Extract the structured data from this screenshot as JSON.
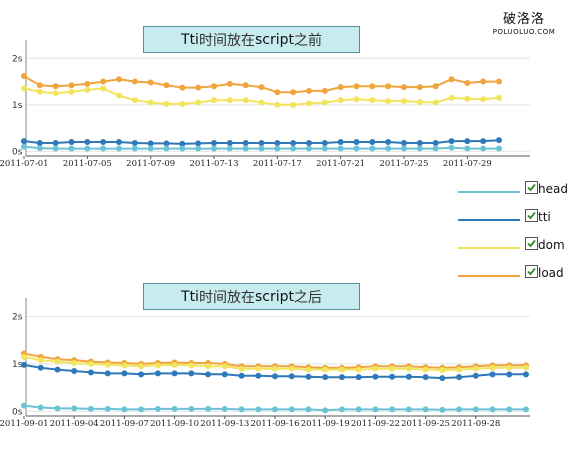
{
  "logo": {
    "text": "破洛洛",
    "subtext": "POLUOLUO.COM"
  },
  "legend": [
    {
      "name": "head",
      "color": "#6cc3d5",
      "checked": true
    },
    {
      "name": "tti",
      "color": "#2f78b9",
      "checked": true
    },
    {
      "name": "dom",
      "color": "#f2e45c",
      "checked": true
    },
    {
      "name": "load",
      "color": "#f0a53c",
      "checked": true
    }
  ],
  "chart_data": [
    {
      "type": "line",
      "title_latin": "Tti ",
      "title_cn": "时间放在 ",
      "title_code": "script",
      "title_tail": " 之前",
      "y_tick_labels": [
        "0s",
        "1s",
        "2s"
      ],
      "y_tick_values": [
        0,
        1,
        2
      ],
      "ylim": [
        -0.1,
        2.35
      ],
      "x_tick_labels": [
        "2011-07-01",
        "2011-07-05",
        "2011-07-09",
        "2011-07-13",
        "2011-07-17",
        "2011-07-21",
        "2011-07-25",
        "2011-07-29"
      ],
      "x_tick_index": [
        0,
        4,
        8,
        12,
        16,
        20,
        24,
        28
      ],
      "x_count": 31,
      "grid": true,
      "series": [
        {
          "name": "load",
          "color": "#f0a53c",
          "values": [
            1.62,
            1.42,
            1.4,
            1.42,
            1.45,
            1.5,
            1.55,
            1.5,
            1.48,
            1.42,
            1.37,
            1.37,
            1.4,
            1.45,
            1.42,
            1.38,
            1.27,
            1.27,
            1.3,
            1.3,
            1.38,
            1.4,
            1.4,
            1.4,
            1.38,
            1.38,
            1.4,
            1.55,
            1.47,
            1.5,
            1.5
          ]
        },
        {
          "name": "dom",
          "color": "#f2e45c",
          "values": [
            1.35,
            1.28,
            1.25,
            1.28,
            1.32,
            1.35,
            1.2,
            1.1,
            1.05,
            1.02,
            1.02,
            1.05,
            1.1,
            1.1,
            1.1,
            1.05,
            1.0,
            1.0,
            1.03,
            1.05,
            1.1,
            1.12,
            1.1,
            1.08,
            1.08,
            1.06,
            1.05,
            1.15,
            1.13,
            1.12,
            1.15
          ]
        },
        {
          "name": "tti",
          "color": "#2f78b9",
          "values": [
            0.22,
            0.18,
            0.18,
            0.2,
            0.2,
            0.2,
            0.2,
            0.18,
            0.17,
            0.17,
            0.16,
            0.17,
            0.18,
            0.18,
            0.18,
            0.18,
            0.18,
            0.18,
            0.18,
            0.18,
            0.2,
            0.2,
            0.2,
            0.2,
            0.18,
            0.18,
            0.18,
            0.22,
            0.22,
            0.22,
            0.24
          ]
        },
        {
          "name": "head",
          "color": "#6cc3d5",
          "values": [
            0.1,
            0.07,
            0.06,
            0.06,
            0.06,
            0.06,
            0.06,
            0.06,
            0.06,
            0.06,
            0.06,
            0.06,
            0.06,
            0.06,
            0.06,
            0.06,
            0.06,
            0.06,
            0.06,
            0.06,
            0.06,
            0.06,
            0.06,
            0.06,
            0.06,
            0.06,
            0.06,
            0.08,
            0.06,
            0.06,
            0.06
          ]
        }
      ]
    },
    {
      "type": "line",
      "title_latin": "Tti ",
      "title_cn": "时间放在 ",
      "title_code": "script",
      "title_tail": " 之后",
      "y_tick_labels": [
        "0s",
        "1s",
        "2s"
      ],
      "y_tick_values": [
        0,
        1,
        2
      ],
      "ylim": [
        -0.1,
        2.35
      ],
      "x_tick_labels": [
        "2011-09-01",
        "2011-09-04",
        "2011-09-07",
        "2011-09-10",
        "2011-09-13",
        "2011-09-16",
        "2011-09-19",
        "2011-09-22",
        "2011-09-25",
        "2011-09-28"
      ],
      "x_tick_index": [
        0,
        3,
        6,
        9,
        12,
        15,
        18,
        21,
        24,
        27
      ],
      "x_count": 31,
      "grid": true,
      "series": [
        {
          "name": "load",
          "color": "#f0a53c",
          "values": [
            1.22,
            1.15,
            1.1,
            1.08,
            1.05,
            1.03,
            1.02,
            1.0,
            1.02,
            1.03,
            1.02,
            1.02,
            1.0,
            0.95,
            0.95,
            0.95,
            0.95,
            0.93,
            0.92,
            0.92,
            0.93,
            0.95,
            0.95,
            0.95,
            0.93,
            0.92,
            0.93,
            0.95,
            0.97,
            0.97,
            0.97
          ]
        },
        {
          "name": "dom",
          "color": "#f2e45c",
          "values": [
            1.15,
            1.08,
            1.05,
            1.02,
            1.0,
            0.98,
            0.97,
            0.95,
            0.97,
            0.98,
            0.97,
            0.95,
            0.95,
            0.9,
            0.9,
            0.9,
            0.9,
            0.88,
            0.88,
            0.88,
            0.88,
            0.9,
            0.9,
            0.9,
            0.88,
            0.87,
            0.88,
            0.9,
            0.92,
            0.92,
            0.92
          ]
        },
        {
          "name": "tti",
          "color": "#2f78b9",
          "values": [
            0.98,
            0.92,
            0.88,
            0.85,
            0.82,
            0.8,
            0.8,
            0.78,
            0.8,
            0.8,
            0.8,
            0.78,
            0.78,
            0.75,
            0.75,
            0.74,
            0.74,
            0.73,
            0.72,
            0.72,
            0.72,
            0.73,
            0.73,
            0.73,
            0.72,
            0.7,
            0.72,
            0.75,
            0.78,
            0.78,
            0.78
          ]
        },
        {
          "name": "head",
          "color": "#6cc3d5",
          "values": [
            0.12,
            0.08,
            0.06,
            0.06,
            0.05,
            0.05,
            0.04,
            0.04,
            0.05,
            0.05,
            0.05,
            0.05,
            0.05,
            0.04,
            0.04,
            0.04,
            0.04,
            0.04,
            0.02,
            0.04,
            0.04,
            0.04,
            0.04,
            0.04,
            0.04,
            0.03,
            0.04,
            0.04,
            0.04,
            0.04,
            0.04
          ]
        }
      ]
    }
  ]
}
